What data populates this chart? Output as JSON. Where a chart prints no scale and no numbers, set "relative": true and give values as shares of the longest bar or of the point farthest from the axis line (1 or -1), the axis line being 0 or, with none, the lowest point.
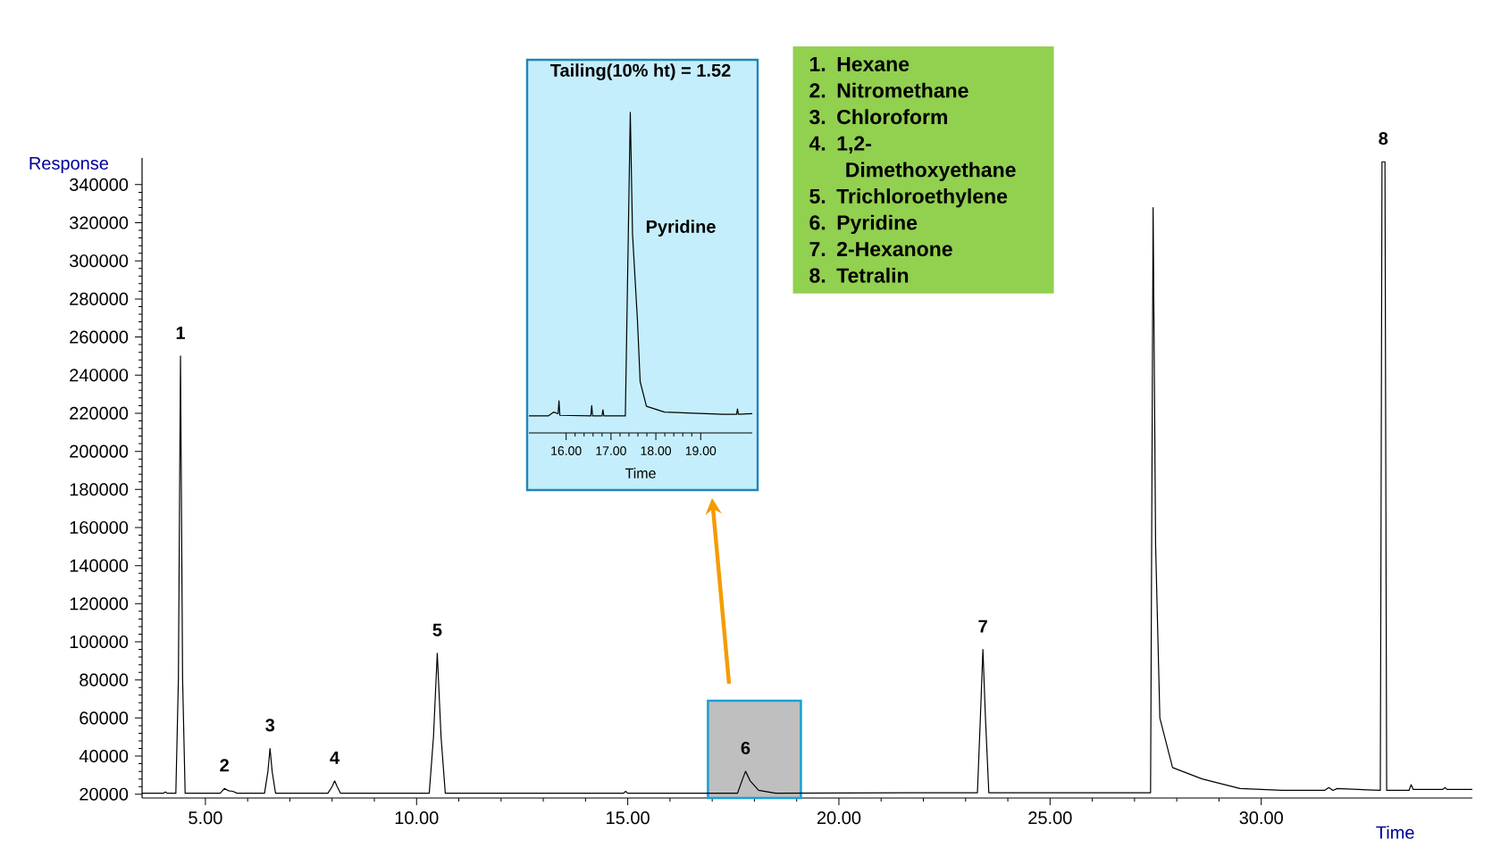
{
  "chart_data": [
    {
      "type": "line",
      "xlabel": "Time",
      "ylabel": "Response",
      "color": "#000000",
      "x": [
        3.5,
        4.0,
        4.05,
        4.1,
        4.3,
        4.36,
        4.41,
        4.46,
        4.52,
        4.7,
        5.35,
        5.45,
        5.55,
        5.65,
        5.75,
        6.4,
        6.48,
        6.53,
        6.58,
        6.66,
        7.9,
        8.0,
        8.06,
        8.12,
        8.2,
        10.3,
        10.4,
        10.49,
        10.58,
        10.68,
        14.9,
        14.95,
        15.0,
        17.6,
        17.72,
        17.79,
        17.9,
        18.1,
        18.5,
        22.5,
        23.28,
        23.35,
        23.41,
        23.47,
        23.55,
        27.38,
        27.44,
        27.5,
        27.6,
        27.9,
        28.6,
        29.5,
        30.5,
        31.5,
        31.6,
        31.7,
        31.8,
        32.82,
        32.86,
        32.89,
        32.93,
        32.97,
        33.5,
        33.55,
        33.6,
        34.3,
        34.35,
        34.4,
        35.0
      ],
      "values": [
        20500,
        20500,
        21200,
        20500,
        20500,
        80000,
        250000,
        80000,
        20500,
        20500,
        20500,
        23000,
        21800,
        21500,
        20500,
        20500,
        32000,
        44000,
        32000,
        20500,
        20500,
        24000,
        27000,
        24000,
        20500,
        20500,
        50000,
        94000,
        50000,
        20500,
        20500,
        21500,
        20500,
        20500,
        28000,
        32000,
        27000,
        22000,
        20500,
        20800,
        20800,
        60000,
        96000,
        60000,
        20800,
        20800,
        328000,
        150000,
        60000,
        34000,
        28000,
        23000,
        22000,
        22000,
        23500,
        22000,
        23000,
        22000,
        352000,
        352000,
        352000,
        22000,
        22000,
        25000,
        22500,
        22500,
        23500,
        22500,
        22500
      ],
      "xlim": [
        3.5,
        35.0
      ],
      "ylim": [
        18000,
        354000
      ],
      "xticks": [
        {
          "value": 5,
          "label": "5.00"
        },
        {
          "value": 10,
          "label": "10.00"
        },
        {
          "value": 15,
          "label": "15.00"
        },
        {
          "value": 20,
          "label": "20.00"
        },
        {
          "value": 25,
          "label": "25.00"
        },
        {
          "value": 30,
          "label": "30.00"
        }
      ],
      "yticks": [
        20000,
        40000,
        60000,
        80000,
        100000,
        120000,
        140000,
        160000,
        180000,
        200000,
        220000,
        240000,
        260000,
        280000,
        300000,
        320000,
        340000
      ],
      "bands": [
        {
          "axis": "x",
          "from": 16.9,
          "to": 19.1,
          "color": "#bfbfbf"
        }
      ],
      "annotations": [
        {
          "text": "1",
          "x": 4.41,
          "y": 250000
        },
        {
          "text": "2",
          "x": 5.45,
          "y": 23000
        },
        {
          "text": "3",
          "x": 6.53,
          "y": 44000
        },
        {
          "text": "4",
          "x": 8.06,
          "y": 27000
        },
        {
          "text": "5",
          "x": 10.49,
          "y": 94000
        },
        {
          "text": "6",
          "x": 17.79,
          "y": 32000
        },
        {
          "text": "7",
          "x": 23.41,
          "y": 96000
        },
        {
          "text": "8",
          "x": 32.89,
          "y": 352000
        },
        "1. Hexane",
        "2. Nitromethane",
        "3. Chloroform",
        "4. 1,2-Dimethoxyethane",
        "5. Trichloroethylene",
        "6. Pyridine",
        "7. 2-Hexanone",
        "8. Tetralin"
      ]
    },
    {
      "type": "line",
      "title": "Tailing(10% ht) = 1.52",
      "xlabel": "Time",
      "color": "#000000",
      "relative": true,
      "x": [
        15.17,
        15.6,
        15.72,
        15.82,
        15.84,
        15.86,
        16.55,
        16.57,
        16.59,
        16.8,
        16.82,
        16.84,
        17.32,
        17.43,
        17.48,
        17.59,
        17.65,
        17.79,
        18.19,
        19.5,
        19.8,
        19.82,
        19.84,
        20.15
      ],
      "values": [
        0.053,
        0.053,
        0.065,
        0.06,
        0.1,
        0.055,
        0.053,
        0.085,
        0.053,
        0.053,
        0.072,
        0.053,
        0.053,
        1.0,
        0.62,
        0.35,
        0.16,
        0.083,
        0.065,
        0.058,
        0.058,
        0.075,
        0.058,
        0.06
      ],
      "xlim": [
        15.17,
        20.15
      ],
      "xticks": [
        {
          "value": 16,
          "label": "16.00"
        },
        {
          "value": 17,
          "label": "17.00"
        },
        {
          "value": 18,
          "label": "18.00"
        },
        {
          "value": 19,
          "label": "19.00"
        }
      ],
      "annotations": [
        "Pyridine"
      ]
    }
  ]
}
